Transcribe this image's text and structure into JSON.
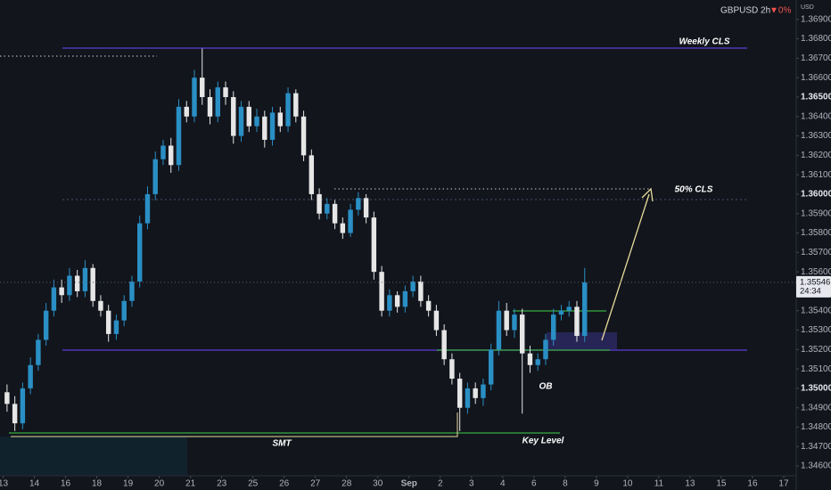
{
  "chart_data": {
    "type": "candlestick",
    "symbol": "GBPUSD 2h",
    "change": "▼0%",
    "currency": "USD",
    "up_color": "#2a8fc4",
    "down_color": "#e6e6e6",
    "xlim": [
      -0.1,
      25.4
    ],
    "ylim": [
      1.3455,
      1.37
    ],
    "xticks": [
      {
        "value": 0,
        "label": "13"
      },
      {
        "value": 1,
        "label": "14"
      },
      {
        "value": 2,
        "label": "16"
      },
      {
        "value": 3,
        "label": "18"
      },
      {
        "value": 4,
        "label": "19"
      },
      {
        "value": 5,
        "label": "20"
      },
      {
        "value": 6,
        "label": "21"
      },
      {
        "value": 7,
        "label": "23"
      },
      {
        "value": 8,
        "label": "25"
      },
      {
        "value": 9,
        "label": "26"
      },
      {
        "value": 10,
        "label": "27"
      },
      {
        "value": 11,
        "label": "28"
      },
      {
        "value": 12,
        "label": "30"
      },
      {
        "value": 13,
        "label": "Sep"
      },
      {
        "value": 14,
        "label": "2"
      },
      {
        "value": 15,
        "label": "3"
      },
      {
        "value": 16,
        "label": "4"
      },
      {
        "value": 17,
        "label": "6"
      },
      {
        "value": 18,
        "label": "8"
      },
      {
        "value": 19,
        "label": "9"
      },
      {
        "value": 20,
        "label": "10"
      },
      {
        "value": 21,
        "label": "11"
      },
      {
        "value": 22,
        "label": "13"
      },
      {
        "value": 23,
        "label": "15"
      },
      {
        "value": 24,
        "label": "16"
      },
      {
        "value": 25,
        "label": "17"
      }
    ],
    "yticks": [
      {
        "value": 1.369,
        "label": "1.36900"
      },
      {
        "value": 1.368,
        "label": "1.36800"
      },
      {
        "value": 1.367,
        "label": "1.36700"
      },
      {
        "value": 1.366,
        "label": "1.36600"
      },
      {
        "value": 1.365,
        "label": "1.36500"
      },
      {
        "value": 1.364,
        "label": "1.36400"
      },
      {
        "value": 1.363,
        "label": "1.36300"
      },
      {
        "value": 1.362,
        "label": "1.36200"
      },
      {
        "value": 1.361,
        "label": "1.36100"
      },
      {
        "value": 1.36,
        "label": "1.36000"
      },
      {
        "value": 1.359,
        "label": "1.35900"
      },
      {
        "value": 1.358,
        "label": "1.35800"
      },
      {
        "value": 1.357,
        "label": "1.35700"
      },
      {
        "value": 1.356,
        "label": "1.35600"
      },
      {
        "value": 1.354,
        "label": "1.35400"
      },
      {
        "value": 1.353,
        "label": "1.35300"
      },
      {
        "value": 1.352,
        "label": "1.35200"
      },
      {
        "value": 1.351,
        "label": "1.35100"
      },
      {
        "value": 1.35,
        "label": "1.35000"
      },
      {
        "value": 1.349,
        "label": "1.34900"
      },
      {
        "value": 1.348,
        "label": "1.34800"
      },
      {
        "value": 1.347,
        "label": "1.34700"
      },
      {
        "value": 1.346,
        "label": "1.34600"
      }
    ],
    "last_price": {
      "value": 1.35546,
      "label": "1.35546"
    },
    "countdown": "24:34",
    "annotations": [
      "Weekly CLS",
      "50% CLS",
      "OB",
      "SMT",
      "Key Level"
    ],
    "x": [
      0.125,
      0.375,
      0.625,
      0.875,
      1.125,
      1.375,
      1.625,
      1.875,
      2.125,
      2.375,
      2.625,
      2.875,
      3.125,
      3.375,
      3.625,
      3.875,
      4.125,
      4.375,
      4.625,
      4.875,
      5.125,
      5.375,
      5.625,
      5.875,
      6.125,
      6.375,
      6.625,
      6.875,
      7.125,
      7.375,
      7.625,
      7.875,
      8.125,
      8.375,
      8.625,
      8.875,
      9.125,
      9.375,
      9.625,
      9.875,
      10.125,
      10.375,
      10.625,
      10.875,
      11.125,
      11.375,
      11.625,
      11.875,
      12.125,
      12.375,
      12.625,
      12.875,
      13.125,
      13.375,
      13.625,
      13.875,
      14.125,
      14.375,
      14.625,
      14.875,
      15.125,
      15.375,
      15.625,
      15.875,
      16.125,
      16.375,
      16.625,
      16.875,
      17.125,
      17.375,
      17.625,
      17.875,
      18.125,
      18.375,
      18.625
    ],
    "open": [
      1.3498,
      1.3492,
      1.3482,
      1.35,
      1.3512,
      1.3525,
      1.354,
      1.3552,
      1.3548,
      1.3558,
      1.355,
      1.3562,
      1.3545,
      1.354,
      1.3528,
      1.3535,
      1.3545,
      1.3555,
      1.3585,
      1.36,
      1.3618,
      1.3625,
      1.3615,
      1.3645,
      1.364,
      1.366,
      1.365,
      1.364,
      1.3655,
      1.365,
      1.363,
      1.3645,
      1.3635,
      1.364,
      1.3628,
      1.3642,
      1.3635,
      1.3652,
      1.364,
      1.362,
      1.36,
      1.359,
      1.3595,
      1.3585,
      1.358,
      1.3592,
      1.3598,
      1.3588,
      1.356,
      1.354,
      1.3548,
      1.3542,
      1.355,
      1.3555,
      1.3545,
      1.354,
      1.353,
      1.3515,
      1.3505,
      1.349,
      1.35,
      1.3495,
      1.3502,
      1.352,
      1.354,
      1.353,
      1.3538,
      1.3518,
      1.3512,
      1.3515,
      1.3525,
      1.3538,
      1.354,
      1.3542,
      1.3527
    ],
    "high": [
      1.3502,
      1.3496,
      1.3503,
      1.3516,
      1.3528,
      1.3544,
      1.3556,
      1.3556,
      1.3562,
      1.3561,
      1.3566,
      1.3564,
      1.3548,
      1.3543,
      1.3538,
      1.3548,
      1.3558,
      1.3589,
      1.3604,
      1.3622,
      1.3628,
      1.3629,
      1.3649,
      1.3648,
      1.3664,
      1.3675,
      1.3654,
      1.3658,
      1.3658,
      1.3653,
      1.3648,
      1.3648,
      1.3644,
      1.3643,
      1.3645,
      1.3645,
      1.3655,
      1.3654,
      1.3643,
      1.3623,
      1.3603,
      1.3598,
      1.3597,
      1.3588,
      1.3595,
      1.3601,
      1.36,
      1.3591,
      1.3563,
      1.3551,
      1.355,
      1.3553,
      1.3558,
      1.3558,
      1.3548,
      1.3543,
      1.3533,
      1.3518,
      1.3508,
      1.3503,
      1.3503,
      1.3505,
      1.3523,
      1.3545,
      1.3544,
      1.3541,
      1.3541,
      1.3522,
      1.3518,
      1.3528,
      1.3541,
      1.3543,
      1.3545,
      1.3545,
      1.3562
    ],
    "low": [
      1.3488,
      1.3478,
      1.3479,
      1.3497,
      1.3509,
      1.3522,
      1.3537,
      1.3544,
      1.3545,
      1.3547,
      1.3547,
      1.3542,
      1.3537,
      1.3524,
      1.3525,
      1.3532,
      1.3542,
      1.3552,
      1.3582,
      1.3597,
      1.3615,
      1.3611,
      1.3612,
      1.3637,
      1.3637,
      1.3646,
      1.3636,
      1.3637,
      1.3646,
      1.3626,
      1.3627,
      1.3632,
      1.3632,
      1.3624,
      1.3625,
      1.3632,
      1.3632,
      1.3637,
      1.3617,
      1.3597,
      1.3587,
      1.3587,
      1.3582,
      1.3577,
      1.3578,
      1.3589,
      1.3585,
      1.3556,
      1.3537,
      1.3537,
      1.3539,
      1.3539,
      1.3547,
      1.3542,
      1.3537,
      1.3527,
      1.3512,
      1.3502,
      1.3478,
      1.3487,
      1.3492,
      1.3491,
      1.3499,
      1.3517,
      1.3527,
      1.3526,
      1.3487,
      1.3508,
      1.3509,
      1.3512,
      1.3522,
      1.3535,
      1.3537,
      1.3524,
      1.3524
    ],
    "close": [
      1.3492,
      1.3482,
      1.35,
      1.3512,
      1.3525,
      1.354,
      1.3552,
      1.3548,
      1.3558,
      1.355,
      1.3562,
      1.3545,
      1.354,
      1.3528,
      1.3535,
      1.3545,
      1.3555,
      1.3585,
      1.36,
      1.3618,
      1.3625,
      1.3615,
      1.3645,
      1.364,
      1.366,
      1.365,
      1.364,
      1.3655,
      1.365,
      1.363,
      1.3645,
      1.3635,
      1.364,
      1.3628,
      1.3642,
      1.3635,
      1.3652,
      1.364,
      1.362,
      1.36,
      1.359,
      1.3595,
      1.3585,
      1.358,
      1.3592,
      1.3598,
      1.3588,
      1.356,
      1.354,
      1.3548,
      1.3542,
      1.355,
      1.3555,
      1.3545,
      1.354,
      1.353,
      1.3515,
      1.3505,
      1.349,
      1.35,
      1.3495,
      1.3502,
      1.352,
      1.354,
      1.353,
      1.3538,
      1.3518,
      1.3512,
      1.3515,
      1.3525,
      1.3538,
      1.354,
      1.3542,
      1.3527,
      1.35546
    ]
  }
}
